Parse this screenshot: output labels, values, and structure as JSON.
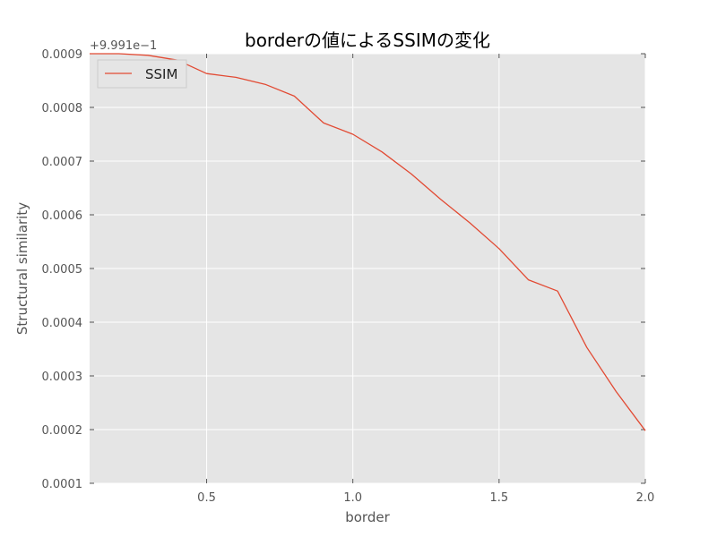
{
  "chart_data": {
    "type": "line",
    "title": "borderの値によるSSIMの変化",
    "xlabel": "border",
    "ylabel": "Structural similarity",
    "offset_text": "+9.991e−1",
    "xlim": [
      0.1,
      2.0
    ],
    "ylim": [
      0.0001,
      0.0009
    ],
    "x_ticks": [
      0.5,
      1.0,
      1.5,
      2.0
    ],
    "x_tick_labels": [
      "0.5",
      "1.0",
      "1.5",
      "2.0"
    ],
    "y_ticks": [
      0.0001,
      0.0002,
      0.0003,
      0.0004,
      0.0005,
      0.0006,
      0.0007,
      0.0008,
      0.0009
    ],
    "y_tick_labels": [
      "0.0001",
      "0.0002",
      "0.0003",
      "0.0004",
      "0.0005",
      "0.0006",
      "0.0007",
      "0.0008",
      "0.0009"
    ],
    "grid": true,
    "legend_position": "top-left",
    "background_color": "#e5e5e5",
    "grid_color": "#ffffff",
    "series": [
      {
        "name": "SSIM",
        "color": "#e24a33",
        "x": [
          0.1,
          0.2,
          0.3,
          0.4,
          0.5,
          0.6,
          0.7,
          0.8,
          0.9,
          1.0,
          1.1,
          1.2,
          1.3,
          1.4,
          1.5,
          1.6,
          1.7,
          1.8,
          1.9,
          2.0
        ],
        "y": [
          0.0009,
          0.0009,
          0.000897,
          0.000888,
          0.000863,
          0.000856,
          0.000843,
          0.000821,
          0.000771,
          0.00075,
          0.000717,
          0.000676,
          0.000629,
          0.000585,
          0.000537,
          0.000479,
          0.000458,
          0.000353,
          0.000271,
          0.000198
        ]
      }
    ]
  }
}
